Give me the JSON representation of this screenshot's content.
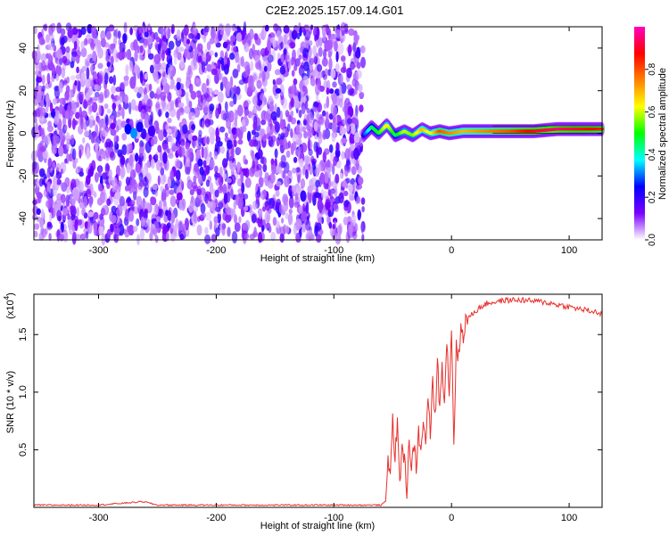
{
  "title": "C2E2.2025.157.09.14.G01",
  "chart_data": [
    {
      "type": "heatmap",
      "title": "C2E2.2025.157.09.14.G01",
      "xlabel": "Height of straight line (km)",
      "ylabel": "Frequency (Hz)",
      "xlim": [
        -355,
        128
      ],
      "ylim": [
        -50,
        50
      ],
      "xticks": [
        -300,
        -200,
        -100,
        0,
        100
      ],
      "yticks": [
        -40,
        -20,
        0,
        20,
        40
      ],
      "noise_region_x": [
        -355,
        -75
      ],
      "signal_track": {
        "x": [
          -75,
          -68,
          -62,
          -55,
          -48,
          -40,
          -33,
          -25,
          -18,
          -10,
          -2,
          10,
          30,
          50,
          70,
          90,
          110,
          128
        ],
        "frequency": [
          -1,
          3,
          0,
          4,
          -1,
          1,
          -1,
          2,
          0,
          1,
          0,
          1,
          1,
          1,
          1,
          2,
          2,
          2
        ],
        "amplitude": [
          0.25,
          0.45,
          0.5,
          0.65,
          0.45,
          0.6,
          0.55,
          0.7,
          0.6,
          0.8,
          0.75,
          0.7,
          0.75,
          0.8,
          0.9,
          0.95,
          0.9,
          0.85
        ]
      },
      "colorbar": {
        "label": "Normalized spectral amplitude",
        "range": [
          0.0,
          1.0
        ],
        "ticks": [
          0.0,
          0.2,
          0.4,
          0.6,
          0.8
        ],
        "colors": [
          "#ffffff",
          "#7b00ff",
          "#0000ff",
          "#00ffff",
          "#00ff00",
          "#ffff00",
          "#ff8000",
          "#ff0000",
          "#ff00c0"
        ]
      }
    },
    {
      "type": "line",
      "xlabel": "Height of straight line (km)",
      "ylabel": "SNR (10 * v/v)",
      "y_scale_label": "(x10",
      "y_scale_exp": "4",
      "xlim": [
        -355,
        128
      ],
      "ylim": [
        0,
        1.85
      ],
      "xticks": [
        -300,
        -200,
        -100,
        0,
        100
      ],
      "yticks": [
        0.5,
        1.0,
        1.5
      ],
      "ytick_labels": [
        "0.5",
        "1.0",
        "1.5"
      ],
      "color": "#e8302c",
      "series": [
        {
          "x": [
            -355,
            -300,
            -262,
            -250,
            -200,
            -150,
            -100,
            -60,
            -56,
            -54,
            -52,
            -50,
            -48,
            -46,
            -44,
            -42,
            -40,
            -38,
            -36,
            -34,
            -32,
            -30,
            -28,
            -26,
            -24,
            -22,
            -20,
            -18,
            -16,
            -14,
            -12,
            -10,
            -8,
            -6,
            -4,
            -2,
            0,
            2,
            4,
            6,
            8,
            10,
            12,
            15,
            20,
            25,
            30,
            40,
            50,
            60,
            70,
            80,
            90,
            100,
            110,
            120,
            128
          ],
          "y": [
            0.02,
            0.02,
            0.05,
            0.02,
            0.02,
            0.02,
            0.02,
            0.02,
            0.05,
            0.4,
            0.35,
            0.75,
            0.45,
            0.7,
            0.2,
            0.55,
            0.4,
            0.15,
            0.6,
            0.3,
            0.55,
            0.35,
            0.65,
            0.45,
            0.8,
            0.5,
            1.0,
            0.6,
            1.1,
            0.75,
            1.3,
            0.85,
            1.25,
            0.95,
            1.45,
            1.0,
            1.55,
            0.55,
            1.4,
            1.3,
            1.55,
            1.5,
            1.62,
            1.65,
            1.7,
            1.74,
            1.77,
            1.79,
            1.8,
            1.8,
            1.79,
            1.78,
            1.76,
            1.74,
            1.72,
            1.7,
            1.68
          ]
        }
      ]
    }
  ]
}
